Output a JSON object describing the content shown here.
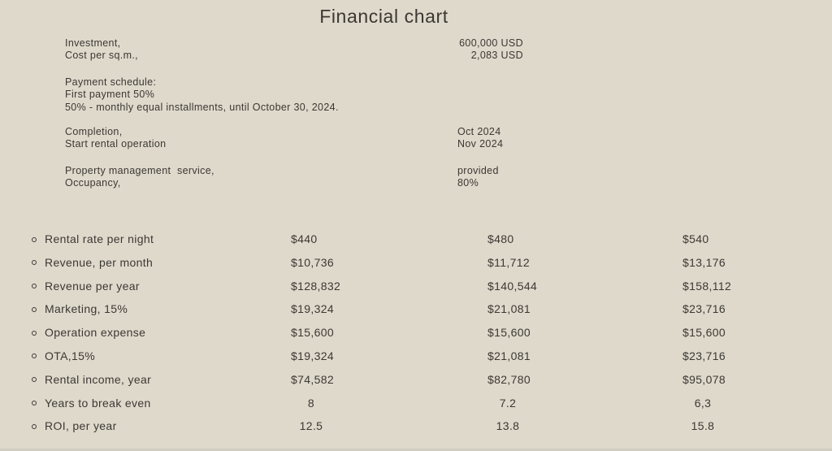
{
  "page": {
    "title": "Financial chart",
    "colors": {
      "background": "#dfd9cc",
      "text": "#3b3833",
      "edge": "#d2cdc1"
    }
  },
  "info": {
    "groups": [
      {
        "rows": [
          {
            "label": "Investment,",
            "value": "600,000 USD"
          },
          {
            "label": "Cost per sq.m.,",
            "value": "2,083 USD"
          }
        ]
      },
      {
        "rows": [
          {
            "label": "Payment schedule:"
          },
          {
            "label": "First payment 50%"
          },
          {
            "label": "50% - monthly equal installments, until October 30, 2024."
          }
        ]
      },
      {
        "rows": [
          {
            "label": "Completion,",
            "value": "Oct 2024"
          },
          {
            "label": "Start rental operation",
            "value": "Nov 2024"
          }
        ]
      },
      {
        "rows": [
          {
            "label": "Property management  service,",
            "value": "provided"
          },
          {
            "label": "Occupancy,",
            "value": "80%"
          }
        ]
      }
    ]
  },
  "table": {
    "rows": [
      {
        "label": "Rental rate per night",
        "values": [
          "$440",
          "$480",
          "$540"
        ]
      },
      {
        "label": "Revenue, per month",
        "values": [
          "$10,736",
          "$11,712",
          "$13,176"
        ]
      },
      {
        "label": "Revenue per year",
        "values": [
          "$128,832",
          "$140,544",
          "$158,112"
        ]
      },
      {
        "label": "Marketing, 15%",
        "values": [
          "$19,324",
          "$21,081",
          "$23,716"
        ]
      },
      {
        "label": "Operation expense",
        "values": [
          "$15,600",
          "$15,600",
          "$15,600"
        ]
      },
      {
        "label": "OTA,15%",
        "values": [
          "$19,324",
          "$21,081",
          "$23,716"
        ]
      },
      {
        "label": "Rental income, year",
        "values": [
          "$74,582",
          "$82,780",
          "$95,078"
        ]
      },
      {
        "label": "Years to break even",
        "values": [
          "8",
          "7.2",
          "6,3"
        ]
      },
      {
        "label": "ROI, per year",
        "values": [
          "12.5",
          "13.8",
          "15.8"
        ]
      }
    ]
  }
}
